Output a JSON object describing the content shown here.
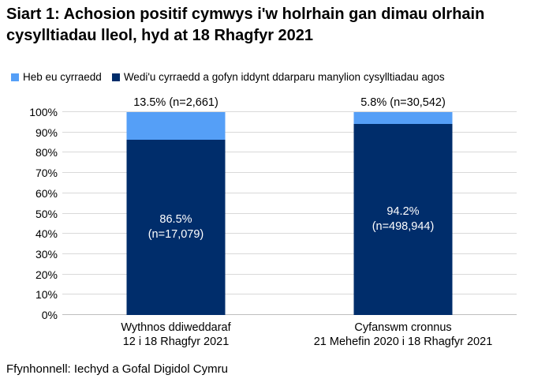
{
  "title": "Siart 1: Achosion positif cymwys i'w holrhain gan dimau olrhain cysylltiadau lleol, hyd at 18 Rhagfyr 2021",
  "source": "Ffynhonnell: Iechyd a Gofal Digidol Cymru",
  "colors": {
    "not_reached_light_blue": "#559FF7",
    "reached_navy": "#002D6B",
    "gridline": "#D9D9D9",
    "axis_line": "#BFBFBF"
  },
  "legend": {
    "items": [
      {
        "label": "Heb eu cyrraedd",
        "color": "#559FF7"
      },
      {
        "label": "Wedi'u cyrraedd a gofyn iddynt ddarparu manylion cysylltiadau agos",
        "color": "#002D6B"
      }
    ]
  },
  "chart_data": {
    "type": "bar",
    "subtype": "stacked-percent-column",
    "title": "Siart 1: Achosion positif cymwys i'w holrhain gan dimau olrhain cysylltiadau lleol, hyd at 18 Rhagfyr 2021",
    "categories": [
      {
        "lines": [
          "Wythnos ddiweddaraf",
          "12 i 18 Rhagfyr 2021"
        ]
      },
      {
        "lines": [
          "Cyfanswm cronnus",
          "21 Mehefin 2020 i 18 Rhagfyr 2021"
        ]
      }
    ],
    "series": [
      {
        "name": "Wedi'u cyrraedd a gofyn iddynt ddarparu manylion cysylltiadau agos",
        "color": "#002D6B",
        "values": [
          86.5,
          94.2
        ],
        "counts": [
          17079,
          498944
        ]
      },
      {
        "name": "Heb eu cyrraedd",
        "color": "#559FF7",
        "values": [
          13.5,
          5.8
        ],
        "counts": [
          2661,
          30542
        ]
      }
    ],
    "labels_above": [
      "13.5% (n=2,661)",
      "5.8% (n=30,542)"
    ],
    "labels_inside": [
      [
        "86.5%",
        "(n=17,079)"
      ],
      [
        "94.2%",
        "(n=498,944)"
      ]
    ],
    "ylim": [
      0,
      100
    ],
    "ytick_step": 10,
    "yticks": [
      "0%",
      "10%",
      "20%",
      "30%",
      "40%",
      "50%",
      "60%",
      "70%",
      "80%",
      "90%",
      "100%"
    ],
    "grid": true,
    "legend_position": "top",
    "xlabel": "",
    "ylabel": ""
  }
}
